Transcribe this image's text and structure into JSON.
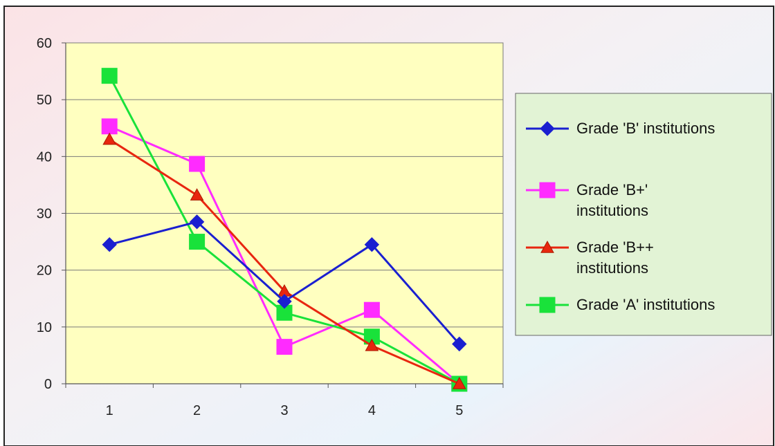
{
  "chart_data": {
    "type": "line",
    "categories": [
      "1",
      "2",
      "3",
      "4",
      "5"
    ],
    "ylim": [
      0,
      60
    ],
    "yticks": [
      "0",
      "10",
      "20",
      "30",
      "40",
      "50",
      "60"
    ],
    "grid": "horizontal",
    "legend_position": "right",
    "plot_background": "#ffffc0",
    "legend_background": "#e2f3d5",
    "series": [
      {
        "name": "Grade 'B' institutions",
        "legend_lines": [
          "Grade 'B' institutions"
        ],
        "color": "#1a1fd0",
        "marker": "diamond",
        "values": [
          24.5,
          28.5,
          14.5,
          24.5,
          7.0
        ]
      },
      {
        "name": "Grade 'B+' institutions",
        "legend_lines": [
          "Grade 'B+'",
          "institutions"
        ],
        "color": "#ff2bff",
        "marker": "square",
        "values": [
          45.3,
          38.7,
          6.5,
          13.0,
          0.0
        ]
      },
      {
        "name": "Grade 'B++ institutions",
        "legend_lines": [
          "Grade 'B++",
          "institutions"
        ],
        "color": "#e8260f",
        "marker": "triangle",
        "values": [
          43.0,
          33.2,
          16.3,
          6.7,
          0.0
        ]
      },
      {
        "name": "Grade 'A' institutions",
        "legend_lines": [
          "Grade 'A' institutions"
        ],
        "color": "#19e23a",
        "marker": "square",
        "values": [
          54.2,
          25.0,
          12.5,
          8.3,
          0.0
        ]
      }
    ]
  }
}
